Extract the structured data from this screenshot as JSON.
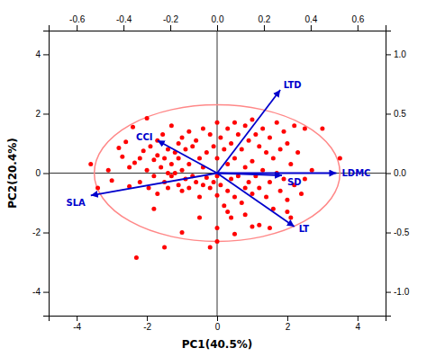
{
  "chart_data": {
    "type": "scatter",
    "xlabel": "PC1(40.5%)",
    "ylabel": "PC2(20.4%)",
    "xlim": [
      -4.8,
      4.8
    ],
    "ylim": [
      -4.8,
      4.8
    ],
    "xticks": [
      -4,
      -2,
      0,
      2,
      4
    ],
    "yticks": [
      -4,
      -2,
      0,
      2,
      4
    ],
    "x2lim": [
      -0.72,
      0.72
    ],
    "x2ticks": [
      -0.6,
      -0.4,
      -0.2,
      {
        "value": 0.0,
        "label": "0.0"
      },
      0.2,
      0.4,
      0.6
    ],
    "y2lim": [
      -1.2,
      1.2
    ],
    "y2ticks": [
      {
        "value": -1.0,
        "label": "-1.0"
      },
      -0.5,
      {
        "value": 0.0,
        "label": "0.0"
      },
      0.5,
      {
        "value": 1.0,
        "label": "1.0"
      }
    ],
    "grid": false,
    "hline": 0,
    "vline": 0,
    "color": "#ff0000",
    "x": [
      -3.6,
      -3.4,
      -3.1,
      -3.0,
      -2.8,
      -2.7,
      -2.6,
      -2.5,
      -2.5,
      -2.4,
      -2.35,
      -2.2,
      -2.2,
      -2.1,
      -2.0,
      -2.0,
      -1.95,
      -1.9,
      -1.8,
      -1.8,
      -1.7,
      -1.7,
      -1.7,
      -1.6,
      -1.55,
      -1.5,
      -1.5,
      -1.4,
      -1.4,
      -1.4,
      -1.3,
      -1.3,
      -1.3,
      -1.2,
      -1.2,
      -1.1,
      -1.1,
      -1.1,
      -1.0,
      -1.0,
      -1.0,
      -0.9,
      -0.9,
      -0.8,
      -0.8,
      -0.8,
      -0.7,
      -0.7,
      -0.6,
      -0.6,
      -0.5,
      -0.5,
      -0.4,
      -0.4,
      -0.4,
      -0.3,
      -0.3,
      -0.2,
      -0.2,
      -0.1,
      -0.1,
      0.0,
      0.0,
      0.0,
      0.0,
      0.0,
      0.1,
      0.1,
      0.2,
      0.2,
      0.3,
      0.3,
      0.3,
      0.4,
      0.4,
      0.4,
      0.5,
      0.5,
      0.5,
      0.6,
      0.6,
      0.7,
      0.7,
      0.8,
      0.8,
      0.8,
      0.9,
      0.9,
      1.0,
      1.0,
      1.0,
      1.1,
      1.1,
      1.2,
      1.2,
      1.3,
      1.3,
      1.4,
      1.4,
      1.5,
      1.5,
      1.6,
      1.6,
      1.7,
      1.7,
      1.8,
      1.8,
      1.9,
      1.9,
      2.0,
      2.0,
      2.1,
      2.1,
      2.2,
      2.2,
      2.3,
      2.4,
      2.5,
      2.5,
      2.7,
      3.0,
      3.5,
      -2.3,
      -1.5,
      -1.0,
      0.5,
      0.0,
      1.2,
      1.5,
      -0.5,
      0.8,
      -1.8,
      2.0,
      1.0,
      -0.2,
      0.3
    ],
    "values": [
      0.3,
      -0.5,
      0.1,
      -0.25,
      0.85,
      0.55,
      1.05,
      0.2,
      -0.45,
      1.55,
      0.35,
      0.5,
      -0.3,
      0.75,
      1.85,
      0.1,
      -0.5,
      0.9,
      0.45,
      -0.1,
      1.1,
      0.6,
      -0.7,
      0.2,
      1.3,
      0.5,
      -0.3,
      0.8,
      0.0,
      -0.5,
      1.6,
      0.3,
      -0.1,
      0.7,
      0.0,
      1.0,
      0.5,
      -0.4,
      1.2,
      0.1,
      -0.6,
      0.8,
      -0.2,
      1.4,
      0.3,
      -0.5,
      0.9,
      -0.1,
      1.1,
      -0.3,
      0.5,
      -0.8,
      1.5,
      0.2,
      -0.4,
      0.7,
      -0.15,
      1.3,
      -0.5,
      0.9,
      -0.3,
      1.7,
      0.5,
      -0.1,
      -0.75,
      -2.3,
      1.2,
      -0.4,
      0.8,
      -1.1,
      1.5,
      0.3,
      -0.6,
      1.0,
      -0.2,
      -1.5,
      1.7,
      0.5,
      -0.8,
      1.3,
      -0.1,
      0.8,
      -1.0,
      1.6,
      0.2,
      -0.5,
      1.1,
      -0.3,
      1.8,
      0.4,
      -0.7,
      1.3,
      -0.1,
      0.9,
      -0.5,
      1.5,
      0.1,
      0.7,
      -0.8,
      1.2,
      -0.3,
      0.5,
      -1.2,
      1.7,
      0.0,
      0.8,
      -0.6,
      1.4,
      -0.2,
      1.0,
      -0.9,
      0.3,
      -1.5,
      1.6,
      -0.4,
      0.7,
      -0.7,
      1.5,
      -0.2,
      0.1,
      1.5,
      0.5,
      -2.85,
      -2.5,
      -2.0,
      -2.05,
      -1.85,
      -1.75,
      -1.85,
      -1.5,
      -1.4,
      -1.2,
      -1.3,
      -1.8,
      -2.5,
      -1.3
    ],
    "ellipse": {
      "center": [
        0,
        0
      ],
      "width": 7.0,
      "height": 4.6,
      "color": "#ff8888"
    },
    "arrows": {
      "color": "#0000cc",
      "names": [
        "LTD",
        "CCI",
        "SD",
        "LDMC",
        "SLA",
        "LT"
      ],
      "x": [
        1.8,
        -1.7,
        1.85,
        3.4,
        -3.6,
        2.2
      ],
      "y": [
        2.8,
        1.1,
        -0.08,
        0.0,
        -0.75,
        -1.8
      ]
    }
  }
}
